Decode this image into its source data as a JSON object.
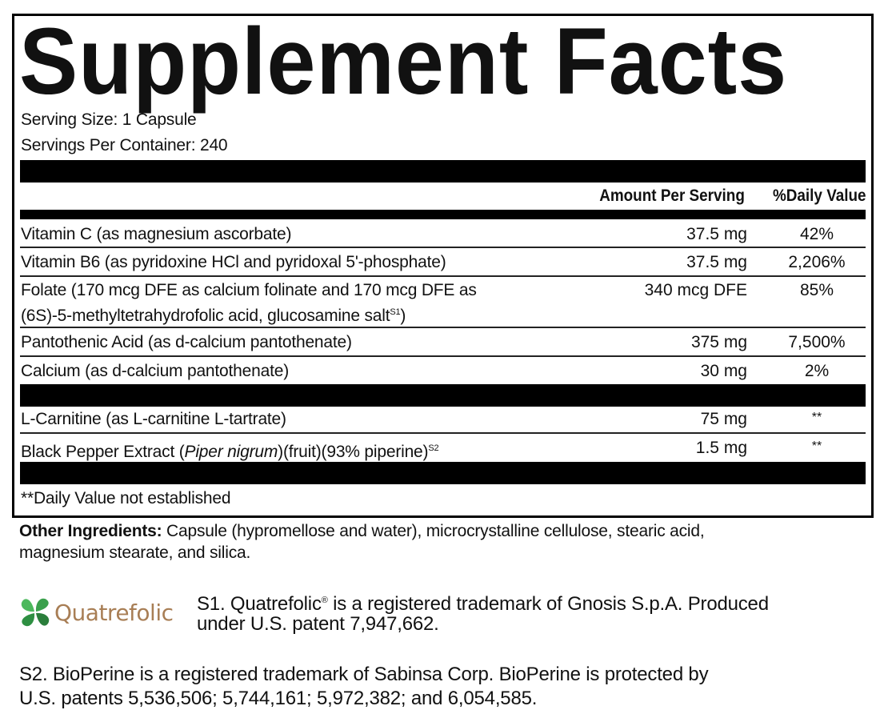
{
  "title": "Supplement Facts",
  "serving_size": "Serving Size: 1 Capsule",
  "servings_per_container": "Servings Per Container: 240",
  "header": {
    "amount": "Amount Per Serving",
    "dv": "%Daily Value"
  },
  "rows": [
    {
      "name": "Vitamin C (as magnesium ascorbate)",
      "amount": "37.5 mg",
      "dv": "42%"
    },
    {
      "name": "Vitamin B6 (as pyridoxine HCl and pyridoxal 5'-phosphate)",
      "amount": "37.5 mg",
      "dv": "2,206%"
    },
    {
      "name": "Folate (170 mcg DFE as calcium folinate and 170 mcg DFE as",
      "name2": "(6S)-5-methyltetrahydrofolic acid, glucosamine salt",
      "sup": "S1",
      "amount": "340 mcg DFE",
      "dv": "85%"
    },
    {
      "name": "Pantothenic Acid (as d-calcium pantothenate)",
      "amount": "375 mg",
      "dv": "7,500%"
    },
    {
      "name": "Calcium (as d-calcium pantothenate)",
      "amount": "30 mg",
      "dv": "2%"
    },
    {
      "name": "L-Carnitine (as L-carnitine L-tartrate)",
      "amount": "75 mg",
      "dv": "**"
    },
    {
      "name": "Black Pepper Extract (",
      "italic": "Piper nigrum",
      "name_rest": ")(fruit)(93% piperine)",
      "sup": "S2",
      "amount": "1.5 mg",
      "dv": "**"
    }
  ],
  "dv_note": "**Daily Value not established",
  "other_ingredients": {
    "label": "Other Ingredients:",
    "text": " Capsule (hypromellose and water), microcrystalline cellulose, stearic acid,",
    "text2": "magnesium stearate, and silica."
  },
  "logo": {
    "text": "Quatrefolic",
    "colors": {
      "leaf": "#2e9e4a",
      "text": "#a87e55"
    }
  },
  "s1": {
    "line1_a": "S1. Quatrefolic",
    "reg": "®",
    "line1_b": " is a registered trademark of Gnosis S.p.A. Produced",
    "line2": "under U.S. patent 7,947,662."
  },
  "s2": {
    "line1": "S2. BioPerine is a registered trademark of Sabinsa Corp. BioPerine is protected by",
    "line2": "U.S. patents 5,536,506; 5,744,161; 5,972,382; and 6,054,585."
  }
}
